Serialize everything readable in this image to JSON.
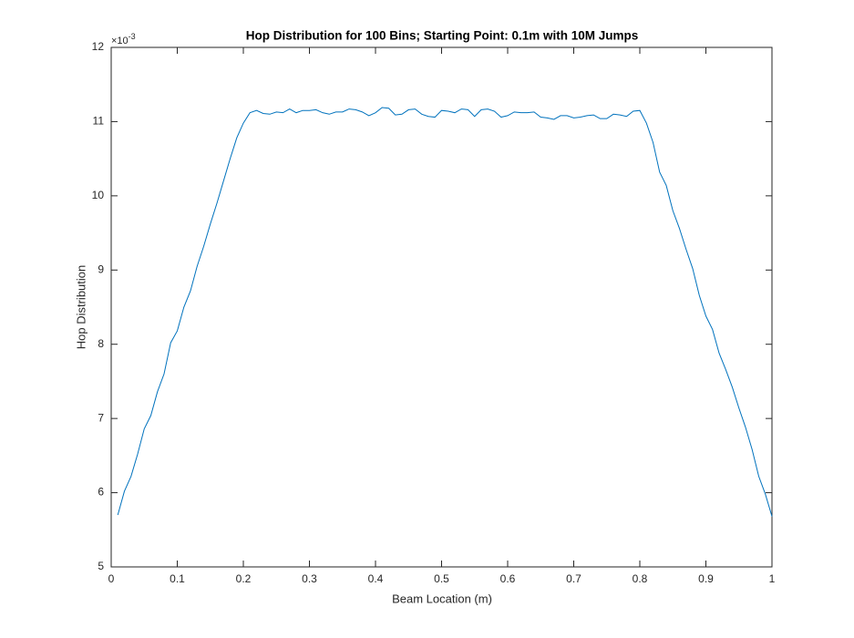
{
  "chart_data": {
    "type": "line",
    "title": "Hop Distribution for 100 Bins; Starting Point: 0.1m with 10M Jumps",
    "xlabel": "Beam Location (m)",
    "ylabel": "Hop Distribution",
    "y_multiplier_base": "×10",
    "y_multiplier_exponent": "-3",
    "color": "#0072bd",
    "x": [
      0.01,
      0.02,
      0.03,
      0.04,
      0.05,
      0.06,
      0.07,
      0.08,
      0.09,
      0.1,
      0.11,
      0.12,
      0.13,
      0.14,
      0.15,
      0.16,
      0.17,
      0.18,
      0.19,
      0.2,
      0.21,
      0.22,
      0.23,
      0.24,
      0.25,
      0.26,
      0.27,
      0.28,
      0.29,
      0.3,
      0.31,
      0.32,
      0.33,
      0.34,
      0.35,
      0.36,
      0.37,
      0.38,
      0.39,
      0.4,
      0.41,
      0.42,
      0.43,
      0.44,
      0.45,
      0.46,
      0.47,
      0.48,
      0.49,
      0.5,
      0.51,
      0.52,
      0.53,
      0.54,
      0.55,
      0.56,
      0.57,
      0.58,
      0.59,
      0.6,
      0.61,
      0.62,
      0.63,
      0.64,
      0.65,
      0.66,
      0.67,
      0.68,
      0.69,
      0.7,
      0.71,
      0.72,
      0.73,
      0.74,
      0.75,
      0.76,
      0.77,
      0.78,
      0.79,
      0.8,
      0.81,
      0.82,
      0.83,
      0.84,
      0.85,
      0.86,
      0.87,
      0.88,
      0.89,
      0.9,
      0.91,
      0.92,
      0.93,
      0.94,
      0.95,
      0.96,
      0.97,
      0.98,
      0.99,
      1.0
    ],
    "values": [
      5.7,
      6.02,
      6.22,
      6.52,
      6.86,
      7.04,
      7.36,
      7.6,
      8.02,
      8.18,
      8.5,
      8.72,
      9.05,
      9.32,
      9.62,
      9.9,
      10.2,
      10.5,
      10.78,
      10.98,
      11.12,
      11.15,
      11.11,
      11.1,
      11.13,
      11.12,
      11.17,
      11.12,
      11.15,
      11.15,
      11.16,
      11.12,
      11.1,
      11.13,
      11.13,
      11.17,
      11.16,
      11.13,
      11.08,
      11.12,
      11.19,
      11.18,
      11.09,
      11.1,
      11.16,
      11.17,
      11.1,
      11.07,
      11.06,
      11.15,
      11.14,
      11.12,
      11.17,
      11.16,
      11.07,
      11.16,
      11.17,
      11.14,
      11.06,
      11.08,
      11.13,
      11.12,
      11.12,
      11.13,
      11.06,
      11.05,
      11.03,
      11.08,
      11.08,
      11.05,
      11.06,
      11.08,
      11.09,
      11.04,
      11.04,
      11.1,
      11.09,
      11.07,
      11.14,
      11.15,
      10.98,
      10.72,
      10.32,
      10.14,
      9.8,
      9.56,
      9.28,
      9.02,
      8.66,
      8.38,
      8.2,
      7.88,
      7.66,
      7.42,
      7.14,
      6.88,
      6.58,
      6.22,
      5.98,
      5.68
    ],
    "xlim": [
      0,
      1
    ],
    "xticks": [
      0,
      0.1,
      0.2,
      0.3,
      0.4,
      0.5,
      0.6,
      0.7,
      0.8,
      0.9,
      1
    ],
    "ylim": [
      5,
      12
    ],
    "yticks": [
      5,
      6,
      7,
      8,
      9,
      10,
      11,
      12
    ]
  }
}
